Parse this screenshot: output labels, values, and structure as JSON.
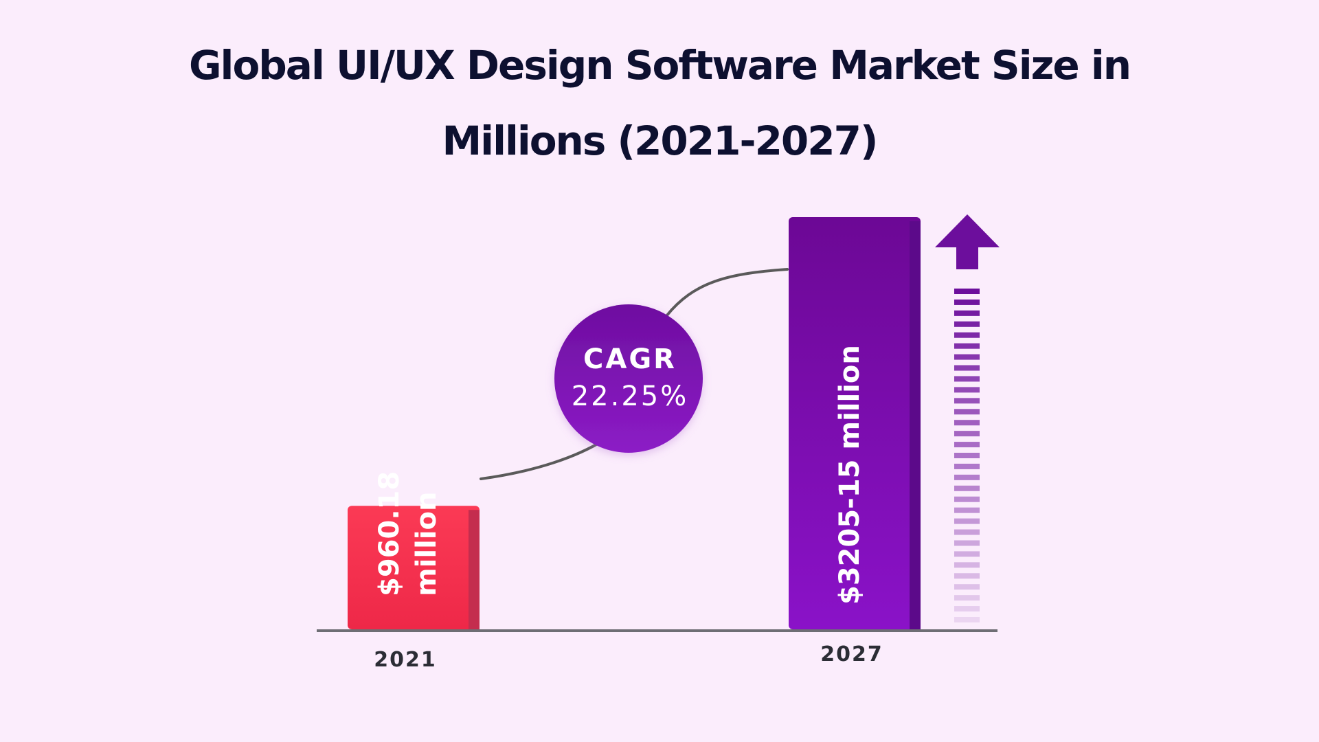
{
  "chart_data": {
    "type": "bar",
    "title": "Global UI/UX Design Software Market Size in Millions (2021-2027)",
    "categories": [
      "2021",
      "2027"
    ],
    "values": [
      960.18,
      3205.15
    ],
    "data_labels": [
      [
        "$960.18",
        "million"
      ],
      [
        "$3205-15 million"
      ]
    ],
    "unit": "million",
    "xlabel": "",
    "ylabel": "",
    "ylim": [
      0,
      3205.15
    ],
    "grid": false,
    "legend": "none",
    "annotation": {
      "label": "CAGR",
      "value": "22.25%"
    }
  },
  "colors": {
    "background": "#fbedfc",
    "bar_2021": "#f23650",
    "bar_2021_side": "#c42d4e",
    "bar_2027": "#7a0ab0",
    "bar_2027_side": "#5c0a8a",
    "cagr_circle": "#7d12b4",
    "connector": "#5a5a5a",
    "axis": "#6e6e74",
    "title": "#0d1030",
    "arrow": "#6c0e9c"
  },
  "icons": {
    "growth_arrow": "up-arrow-icon"
  }
}
